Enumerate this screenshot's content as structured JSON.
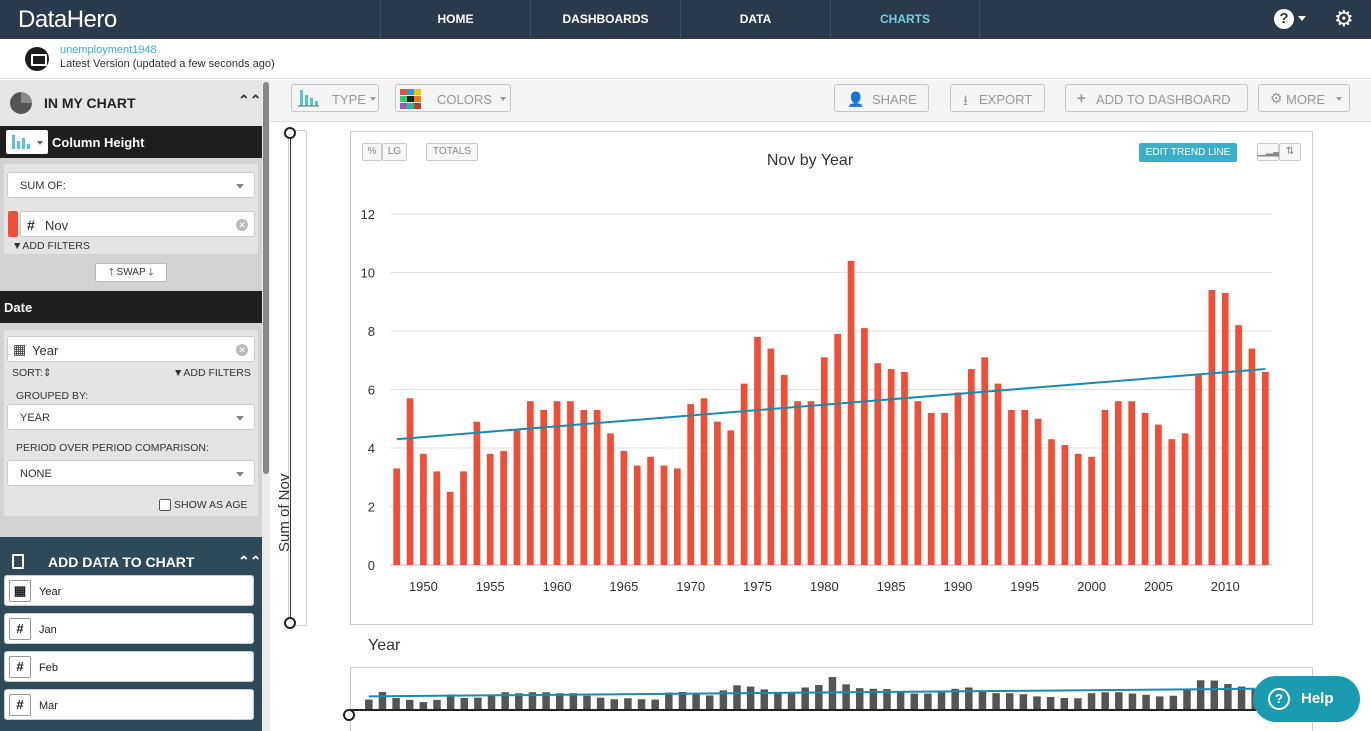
{
  "app": {
    "logo": "DataHero",
    "nav": [
      "HOME",
      "DASHBOARDS",
      "DATA",
      "CHARTS"
    ],
    "help_glyph": "?",
    "gear_glyph": "⚙"
  },
  "subheader": {
    "dataset_name": "unemployment1948",
    "version_text": "Latest Version (updated a few seconds ago)"
  },
  "sidebar": {
    "in_my_chart": "IN MY CHART",
    "collapse_glyph": "⌃⌃",
    "measure_section": "Column Height",
    "sum_of": "SUM OF:",
    "measure_field": "Nov",
    "measure_field_icon": "#",
    "add_filters": "ADD FILTERS",
    "swap": "SWAP",
    "date_section": "Date",
    "date_field": "Year",
    "sort_label": "SORT:",
    "date_add_filters": "ADD FILTERS",
    "grouped_by_label": "GROUPED BY:",
    "grouped_by_value": "YEAR",
    "period_label": "PERIOD OVER PERIOD COMPARISON:",
    "period_value": "NONE",
    "show_as_age": "SHOW AS AGE",
    "add_data_title": "ADD DATA TO CHART",
    "data_fields": [
      {
        "icon": "▦",
        "label": "Year"
      },
      {
        "icon": "#",
        "label": "Jan"
      },
      {
        "icon": "#",
        "label": "Feb"
      },
      {
        "icon": "#",
        "label": "Mar"
      }
    ]
  },
  "toolbar": {
    "type": "TYPE",
    "colors": "COLORS",
    "share": "SHARE",
    "export": "EXPORT",
    "add_to_dashboard": "ADD TO DASHBOARD",
    "more": "MORE"
  },
  "chart_controls": {
    "pct": "%",
    "lg": "LG",
    "totals": "TOTALS",
    "edit_trend_line": "EDIT TREND LINE"
  },
  "colors": {
    "bar": "#f04e37",
    "trend": "#1a8bb0",
    "nav_bg": "#2b3a4a",
    "accent": "#3ab0c8",
    "mini_bar": "#555555"
  },
  "chart_data": {
    "type": "bar",
    "title": "Nov by Year",
    "xlabel": "Year",
    "ylabel": "Sum of Nov",
    "ylim": [
      0,
      12
    ],
    "yticks": [
      0,
      2,
      4,
      6,
      8,
      10,
      12
    ],
    "xticks": [
      1950,
      1955,
      1960,
      1965,
      1970,
      1975,
      1980,
      1985,
      1990,
      1995,
      2000,
      2005,
      2010
    ],
    "x": [
      1948,
      1949,
      1950,
      1951,
      1952,
      1953,
      1954,
      1955,
      1956,
      1957,
      1958,
      1959,
      1960,
      1961,
      1962,
      1963,
      1964,
      1965,
      1966,
      1967,
      1968,
      1969,
      1970,
      1971,
      1972,
      1973,
      1974,
      1975,
      1976,
      1977,
      1978,
      1979,
      1980,
      1981,
      1982,
      1983,
      1984,
      1985,
      1986,
      1987,
      1988,
      1989,
      1990,
      1991,
      1992,
      1993,
      1994,
      1995,
      1996,
      1997,
      1998,
      1999,
      2000,
      2001,
      2002,
      2003,
      2004,
      2005,
      2006,
      2007,
      2008,
      2009,
      2010,
      2011,
      2012,
      2013
    ],
    "values": [
      3.3,
      5.7,
      3.8,
      3.2,
      2.5,
      3.2,
      4.9,
      3.8,
      3.9,
      4.6,
      5.6,
      5.3,
      5.6,
      5.6,
      5.3,
      5.3,
      4.5,
      3.9,
      3.4,
      3.7,
      3.4,
      3.3,
      5.5,
      5.7,
      4.9,
      4.6,
      6.2,
      7.8,
      7.4,
      6.5,
      5.6,
      5.6,
      7.1,
      7.9,
      10.4,
      8.1,
      6.9,
      6.7,
      6.6,
      5.6,
      5.2,
      5.2,
      5.9,
      6.7,
      7.1,
      6.2,
      5.3,
      5.3,
      5.0,
      4.3,
      4.1,
      3.8,
      3.7,
      5.3,
      5.6,
      5.6,
      5.2,
      4.8,
      4.3,
      4.5,
      6.5,
      9.4,
      9.3,
      8.2,
      7.4,
      6.6
    ],
    "trend_line": {
      "start": [
        1948,
        4.3
      ],
      "end": [
        2013,
        6.7
      ]
    }
  }
}
